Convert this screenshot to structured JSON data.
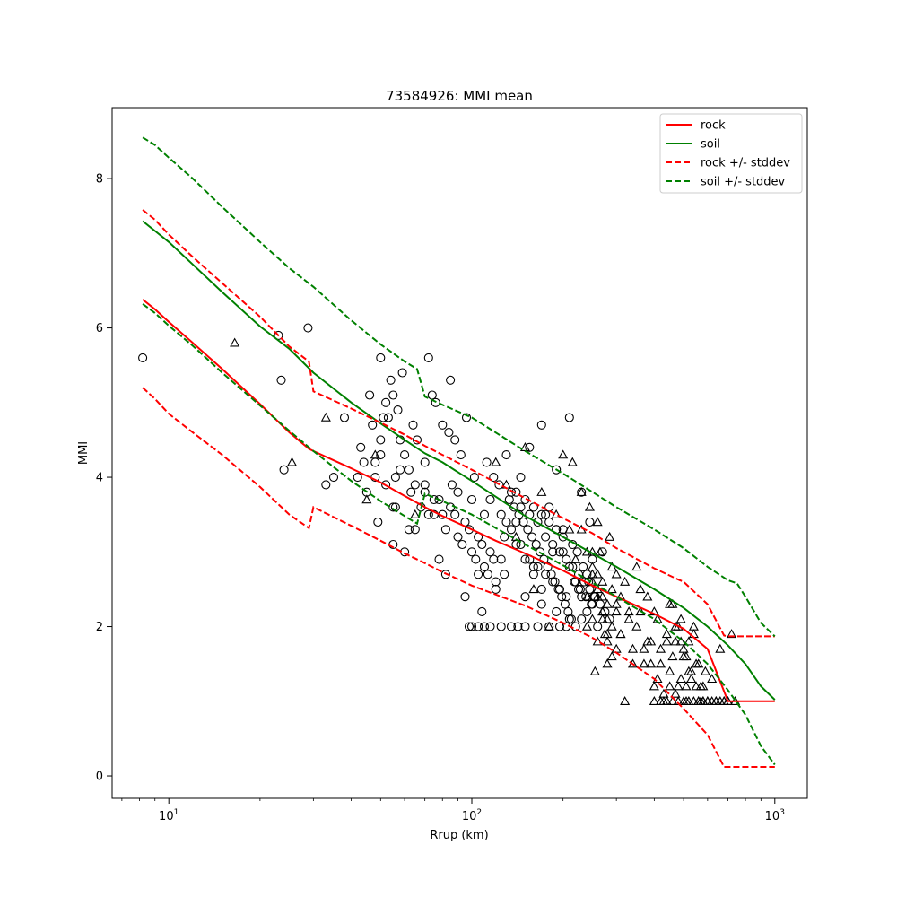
{
  "chart_data": {
    "type": "scatter",
    "title": "73584926: MMI mean",
    "xlabel": "Rrup (km)",
    "ylabel": "MMI",
    "xscale": "log",
    "xlim": [
      6.5,
      1280
    ],
    "ylim": [
      -0.3,
      8.95
    ],
    "xticks": [
      {
        "value": 10,
        "base": "10",
        "exp": "1"
      },
      {
        "value": 100,
        "base": "10",
        "exp": "2"
      },
      {
        "value": 1000,
        "base": "10",
        "exp": "3"
      }
    ],
    "yticks": [
      0,
      2,
      4,
      6,
      8
    ],
    "grid": false,
    "legend_position": "top-right",
    "colors": {
      "rock": "#ff0000",
      "soil": "#008000",
      "markers": "#000000"
    },
    "series": [
      {
        "name": "rock",
        "style": "solid",
        "color": "#ff0000",
        "x": [
          8.2,
          9,
          10,
          12,
          15,
          20,
          25,
          29,
          30,
          40,
          50,
          60,
          70,
          80,
          100,
          120,
          150,
          200,
          250,
          300,
          400,
          500,
          600,
          700,
          800,
          1000
        ],
        "y": [
          6.38,
          6.25,
          6.08,
          5.8,
          5.45,
          4.98,
          4.6,
          4.38,
          4.35,
          4.12,
          3.93,
          3.75,
          3.6,
          3.48,
          3.3,
          3.15,
          2.98,
          2.75,
          2.55,
          2.4,
          2.17,
          1.97,
          1.7,
          1.0,
          1.0,
          1.0
        ]
      },
      {
        "name": "soil",
        "style": "solid",
        "color": "#008000",
        "x": [
          8.2,
          9,
          10,
          12,
          15,
          20,
          25,
          30,
          40,
          50,
          60,
          70,
          80,
          100,
          150,
          200,
          300,
          400,
          500,
          600,
          700,
          800,
          900,
          1000
        ],
        "y": [
          7.43,
          7.3,
          7.15,
          6.85,
          6.48,
          6.02,
          5.72,
          5.4,
          5.0,
          4.72,
          4.5,
          4.32,
          4.2,
          3.95,
          3.48,
          3.2,
          2.8,
          2.5,
          2.25,
          2.0,
          1.75,
          1.5,
          1.2,
          1.02
        ]
      },
      {
        "name": "rock +/- stddev",
        "style": "dashed",
        "color": "#ff0000",
        "x": [
          8.2,
          9,
          10,
          12,
          15,
          20,
          25,
          29,
          30,
          40,
          50,
          60,
          70,
          80,
          100,
          150,
          200,
          250,
          300,
          400,
          480,
          500,
          600,
          680,
          700,
          800,
          1000
        ],
        "y": [
          7.58,
          7.45,
          7.25,
          6.95,
          6.6,
          6.15,
          5.75,
          5.55,
          5.15,
          4.92,
          4.73,
          4.57,
          4.42,
          4.3,
          4.1,
          3.72,
          3.45,
          3.25,
          3.05,
          2.78,
          2.63,
          2.6,
          2.3,
          1.88,
          1.87,
          1.87,
          1.87
        ]
      },
      {
        "name": "rock +/- stddev (lower)",
        "style": "dashed",
        "color": "#ff0000",
        "x": [
          8.2,
          9,
          10,
          12,
          15,
          20,
          25,
          29,
          30,
          40,
          50,
          60,
          70,
          80,
          100,
          150,
          200,
          250,
          300,
          400,
          500,
          600,
          680,
          700,
          800,
          1000
        ],
        "y": [
          5.2,
          5.05,
          4.85,
          4.6,
          4.3,
          3.87,
          3.5,
          3.32,
          3.6,
          3.35,
          3.15,
          2.98,
          2.85,
          2.73,
          2.55,
          2.28,
          2.05,
          1.85,
          1.65,
          1.3,
          0.9,
          0.55,
          0.12,
          0.12,
          0.12,
          0.12
        ]
      },
      {
        "name": "soil +/- stddev",
        "style": "dashed",
        "color": "#008000",
        "x": [
          8.2,
          9,
          10,
          12,
          15,
          20,
          25,
          30,
          40,
          50,
          60,
          66,
          70,
          80,
          100,
          150,
          200,
          300,
          400,
          500,
          600,
          700,
          750,
          800,
          900,
          1000
        ],
        "y": [
          8.55,
          8.45,
          8.28,
          8.0,
          7.62,
          7.15,
          6.8,
          6.55,
          6.1,
          5.78,
          5.55,
          5.45,
          5.08,
          4.97,
          4.8,
          4.35,
          4.05,
          3.6,
          3.3,
          3.05,
          2.8,
          2.62,
          2.58,
          2.4,
          2.05,
          1.87
        ]
      },
      {
        "name": "soil +/- stddev (lower)",
        "style": "dashed",
        "color": "#008000",
        "x": [
          8.2,
          9,
          10,
          12,
          15,
          20,
          25,
          30,
          40,
          50,
          60,
          66,
          70,
          80,
          100,
          150,
          200,
          300,
          400,
          500,
          600,
          700,
          800,
          900,
          1000
        ],
        "y": [
          6.32,
          6.2,
          6.03,
          5.76,
          5.4,
          4.96,
          4.62,
          4.35,
          3.95,
          3.68,
          3.48,
          3.38,
          3.78,
          3.68,
          3.5,
          3.1,
          2.82,
          2.4,
          2.1,
          1.8,
          1.5,
          1.15,
          0.82,
          0.4,
          0.15
        ]
      }
    ],
    "circles": {
      "x": [
        8.2,
        23.5,
        28.8,
        23,
        24,
        33,
        35,
        38,
        42,
        43,
        44,
        45,
        46,
        47,
        48,
        49,
        50,
        50,
        51,
        52,
        53,
        54,
        55,
        55,
        56,
        57,
        58,
        59,
        60,
        60,
        62,
        64,
        65,
        66,
        68,
        70,
        72,
        74,
        75,
        76,
        78,
        80,
        82,
        84,
        85,
        86,
        88,
        90,
        92,
        95,
        96,
        98,
        100,
        102,
        105,
        108,
        110,
        112,
        115,
        118,
        120,
        125,
        128,
        130,
        135,
        140,
        142,
        145,
        150,
        155,
        160,
        165,
        170,
        175,
        180,
        185,
        190,
        195,
        200,
        205,
        210,
        215,
        220,
        225,
        230,
        240,
        245,
        250,
        260,
        270,
        48,
        52,
        55,
        62,
        70,
        80,
        90,
        100,
        110,
        120,
        130,
        140,
        150,
        160,
        170,
        180,
        190,
        200,
        210,
        220,
        230,
        240,
        250,
        140,
        150,
        160,
        170,
        180,
        190,
        200,
        115,
        125,
        135,
        145,
        155,
        165,
        175,
        185,
        195,
        205,
        100,
        105,
        110,
        150,
        170,
        190,
        210,
        230,
        58,
        65,
        75,
        85,
        95,
        105,
        115,
        125,
        135,
        145,
        155,
        165,
        175,
        185,
        195,
        205,
        215,
        225,
        235,
        245,
        255,
        265,
        275,
        285,
        50,
        56,
        63,
        72,
        82,
        93,
        103,
        113,
        123,
        133,
        143,
        153,
        163,
        173,
        183,
        193,
        203,
        213,
        223,
        233,
        243,
        253,
        70,
        78,
        88,
        98,
        108,
        118,
        128,
        138,
        148,
        158,
        168,
        178,
        188,
        198,
        208,
        218,
        228,
        238,
        248
      ],
      "y": [
        5.6,
        5.3,
        6.0,
        5.9,
        4.1,
        3.9,
        4.0,
        4.8,
        4.0,
        4.4,
        4.2,
        3.8,
        5.1,
        4.7,
        4.0,
        3.4,
        5.6,
        4.5,
        4.8,
        5.0,
        4.8,
        5.3,
        5.1,
        3.1,
        3.6,
        4.9,
        4.5,
        5.4,
        4.3,
        3.0,
        4.1,
        4.7,
        3.3,
        4.5,
        3.6,
        4.2,
        5.6,
        5.1,
        3.5,
        5.0,
        2.9,
        4.7,
        2.7,
        4.6,
        5.3,
        3.9,
        4.5,
        3.8,
        4.3,
        2.4,
        4.8,
        2.0,
        3.7,
        4.0,
        2.7,
        2.2,
        3.5,
        4.2,
        2.0,
        4.0,
        2.5,
        2.0,
        3.2,
        4.3,
        2.0,
        3.4,
        2.0,
        4.0,
        2.0,
        4.4,
        2.8,
        2.0,
        4.7,
        3.5,
        2.0,
        3.0,
        4.1,
        2.0,
        3.3,
        2.0,
        4.8,
        3.1,
        2.0,
        2.5,
        3.8,
        2.2,
        3.4,
        2.9,
        2.0,
        3.0,
        4.2,
        3.9,
        3.6,
        3.3,
        3.8,
        3.5,
        3.2,
        3.0,
        2.8,
        2.6,
        3.4,
        3.1,
        2.9,
        2.7,
        2.5,
        3.6,
        3.3,
        3.0,
        2.8,
        2.6,
        2.4,
        2.7,
        2.3,
        3.8,
        3.7,
        3.6,
        3.5,
        3.4,
        3.3,
        3.2,
        3.7,
        3.5,
        3.3,
        3.1,
        2.9,
        2.8,
        2.7,
        2.6,
        2.5,
        2.4,
        2.0,
        2.0,
        2.0,
        2.4,
        2.3,
        2.2,
        2.1,
        2.1,
        4.1,
        3.9,
        3.7,
        3.6,
        3.4,
        3.2,
        3.0,
        2.9,
        3.8,
        3.6,
        3.5,
        3.4,
        3.2,
        3.1,
        3.0,
        2.9,
        2.8,
        2.7,
        2.6,
        2.5,
        2.4,
        2.3,
        2.2,
        2.1,
        4.3,
        4.0,
        3.8,
        3.5,
        3.3,
        3.1,
        2.9,
        2.7,
        3.9,
        3.7,
        3.5,
        3.3,
        3.1,
        2.9,
        2.7,
        2.5,
        2.3,
        2.1,
        3.0,
        2.8,
        2.6,
        2.4,
        3.9,
        3.7,
        3.5,
        3.3,
        3.1,
        2.9,
        2.7,
        3.6,
        3.4,
        3.2,
        3.0,
        2.8,
        2.6,
        2.4,
        2.2,
        2.6,
        2.5,
        2.4,
        2.3
      ]
    },
    "triangles": {
      "x": [
        16.5,
        25.5,
        33,
        45,
        48,
        65,
        120,
        130,
        140,
        150,
        160,
        170,
        180,
        190,
        200,
        210,
        215,
        220,
        230,
        240,
        245,
        250,
        255,
        260,
        265,
        270,
        275,
        280,
        285,
        290,
        300,
        310,
        320,
        330,
        340,
        350,
        360,
        370,
        380,
        390,
        400,
        410,
        420,
        430,
        440,
        450,
        460,
        470,
        480,
        490,
        500,
        510,
        520,
        530,
        540,
        550,
        560,
        570,
        580,
        590,
        600,
        620,
        640,
        660,
        680,
        700,
        720,
        740,
        320,
        340,
        360,
        380,
        400,
        420,
        440,
        460,
        480,
        500,
        520,
        540,
        560,
        580,
        240,
        250,
        260,
        270,
        280,
        290,
        300,
        250,
        260,
        270,
        280,
        290,
        300,
        310,
        330,
        350,
        370,
        390,
        410,
        430,
        450,
        470,
        490,
        510,
        530,
        550,
        570,
        250,
        260,
        270,
        280,
        230,
        240,
        250,
        260,
        270,
        280,
        290,
        300,
        310,
        400,
        420,
        440,
        460,
        480,
        500,
        520,
        540,
        560,
        580,
        600,
        620,
        640,
        660,
        680,
        700,
        450,
        470,
        490,
        510
      ],
      "y": [
        5.8,
        4.2,
        4.8,
        3.7,
        4.3,
        3.5,
        4.2,
        3.9,
        3.2,
        4.4,
        2.5,
        3.8,
        2.0,
        3.5,
        4.3,
        3.3,
        4.2,
        2.9,
        3.8,
        2.0,
        3.6,
        2.6,
        1.4,
        3.4,
        3.0,
        2.2,
        1.9,
        1.5,
        3.2,
        2.8,
        2.3,
        1.9,
        2.6,
        2.1,
        1.7,
        2.8,
        2.2,
        1.5,
        2.4,
        1.8,
        1.2,
        2.1,
        1.7,
        1.0,
        1.9,
        1.4,
        2.3,
        1.8,
        1.2,
        2.1,
        1.6,
        1.0,
        1.8,
        1.3,
        2.0,
        1.5,
        1.0,
        1.2,
        1.0,
        1.4,
        1.0,
        1.3,
        1.0,
        1.7,
        1.0,
        1.0,
        1.9,
        1.0,
        1.0,
        1.5,
        2.5,
        1.8,
        2.2,
        1.5,
        1.8,
        1.6,
        2.0,
        1.7,
        1.4,
        1.9,
        1.5,
        1.2,
        2.4,
        2.1,
        1.8,
        2.6,
        2.3,
        2.0,
        1.7,
        2.8,
        2.5,
        2.2,
        1.9,
        1.6,
        2.7,
        2.4,
        2.2,
        2.0,
        1.7,
        1.5,
        1.3,
        1.1,
        2.3,
        2.0,
        1.8,
        1.6,
        1.4,
        1.2,
        1.0,
        3.0,
        2.7,
        2.4,
        2.1,
        3.3,
        3.0,
        2.7,
        2.4,
        2.1,
        1.8,
        2.5,
        2.2,
        1.9,
        1.0,
        1.0,
        1.0,
        1.0,
        1.0,
        1.0,
        1.0,
        1.0,
        1.0,
        1.0,
        1.0,
        1.0,
        1.0,
        1.0,
        1.0,
        1.0,
        1.2,
        1.1,
        1.3,
        1.2
      ]
    },
    "legend": [
      "rock",
      "soil",
      "rock +/- stddev",
      "soil +/- stddev"
    ]
  }
}
